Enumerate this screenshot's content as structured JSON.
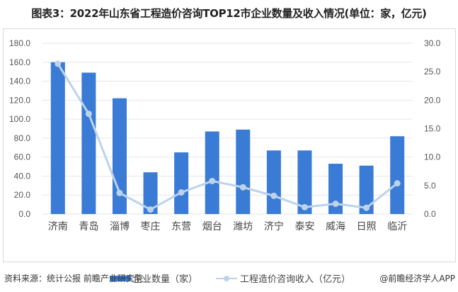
{
  "title": "图表3：2022年山东省工程造价咨询TOP12市企业数量及收入情况(单位：家，亿元)",
  "legend": {
    "bar_label": "企业数量（家）",
    "line_label": "工程造价咨询收入（亿元）"
  },
  "footer": {
    "source": "资料来源：统计公报 前瞻产业研究院",
    "credit": "@前瞻经济学人APP"
  },
  "colors": {
    "bar": "#3a7bd5",
    "line": "#bcd3ea",
    "grid": "#e6e6e6"
  },
  "chart_data": {
    "type": "bar",
    "title": "2022年山东省工程造价咨询TOP12市企业数量及收入情况(单位：家，亿元)",
    "categories": [
      "济南",
      "青岛",
      "淄博",
      "枣庄",
      "东营",
      "烟台",
      "潍坊",
      "济宁",
      "泰安",
      "威海",
      "日照",
      "临沂"
    ],
    "series": [
      {
        "name": "企业数量（家）",
        "type": "bar",
        "axis": "left",
        "values": [
          160,
          149,
          122,
          44,
          65,
          87,
          89,
          67,
          67,
          53,
          51,
          82
        ]
      },
      {
        "name": "工程造价咨询收入（亿元）",
        "type": "line",
        "axis": "right",
        "values": [
          26.4,
          17.6,
          3.7,
          0.8,
          3.8,
          5.8,
          4.7,
          3.2,
          1.2,
          1.8,
          1.1,
          5.4
        ]
      }
    ],
    "y_left": {
      "min": 0,
      "max": 180,
      "step": 20,
      "ticks": [
        "0.0",
        "20.0",
        "40.0",
        "60.0",
        "80.0",
        "100.0",
        "120.0",
        "140.0",
        "160.0",
        "180.0"
      ]
    },
    "y_right": {
      "min": 0,
      "max": 30,
      "step": 5,
      "ticks": [
        "0.0",
        "5.0",
        "10.0",
        "15.0",
        "20.0",
        "25.0",
        "30.0"
      ]
    },
    "grid": true,
    "legend_position": "bottom"
  }
}
